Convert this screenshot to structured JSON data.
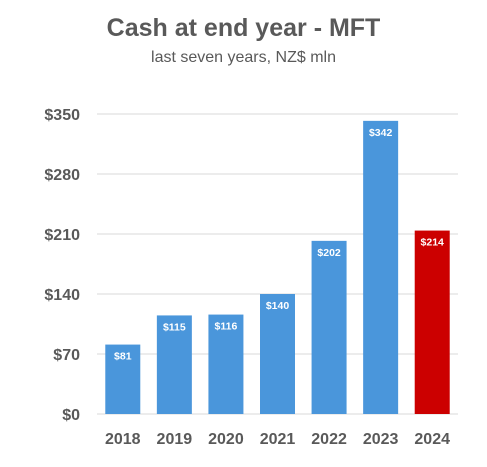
{
  "chart_data": {
    "type": "bar",
    "title": "Cash at end year - MFT",
    "subtitle": "last seven years, NZ$ mln",
    "categories": [
      "2018",
      "2019",
      "2020",
      "2021",
      "2022",
      "2023",
      "2024"
    ],
    "values": [
      81,
      115,
      116,
      140,
      202,
      342,
      214
    ],
    "value_labels": [
      "$81",
      "$115",
      "$116",
      "$140",
      "$202",
      "$342",
      "$214"
    ],
    "bar_colors": [
      "#4A96DB",
      "#4A96DB",
      "#4A96DB",
      "#4A96DB",
      "#4A96DB",
      "#4A96DB",
      "#CC0000"
    ],
    "ylim": [
      0,
      350
    ],
    "yticks": [
      0,
      70,
      140,
      210,
      280,
      350
    ],
    "ytick_labels": [
      "$0",
      "$70",
      "$140",
      "$210",
      "$280",
      "$350"
    ],
    "xlabel": "",
    "ylabel": "",
    "grid": true,
    "legend": "none"
  }
}
